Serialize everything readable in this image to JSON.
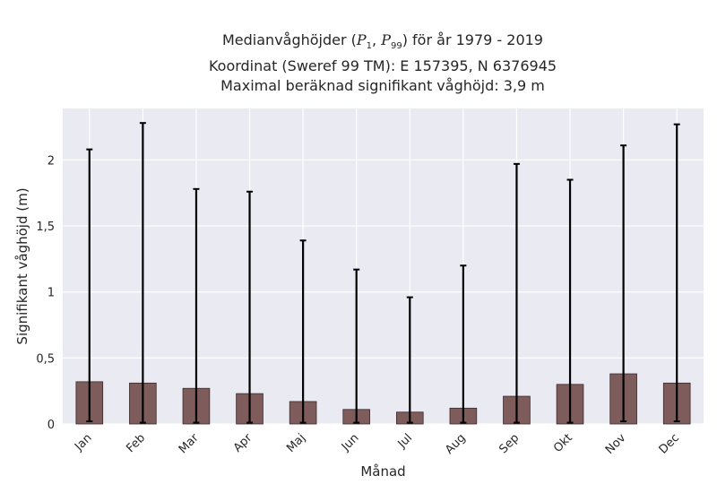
{
  "title": {
    "line1_pre": "Medianvåghöjder (",
    "p1_var": "P",
    "p1_sub": "1",
    "sep": ", ",
    "p99_var": "P",
    "p99_sub": "99",
    "line1_post": ") för år 1979 - 2019",
    "line2": "Koordinat (Sweref 99 TM): E 157395, N 6376945",
    "line3": "Maximal beräknad signifikant våghöjd: 3,9 m"
  },
  "colors": {
    "plot_bg": "#eaeaf2",
    "grid": "#ffffff",
    "bar_fill": "#7e5c5c",
    "bar_edge": "#3a2a2a",
    "error": "#000000"
  },
  "chart_data": {
    "type": "bar",
    "categories": [
      "Jan",
      "Feb",
      "Mar",
      "Apr",
      "Maj",
      "Jun",
      "Jul",
      "Aug",
      "Sep",
      "Okt",
      "Nov",
      "Dec"
    ],
    "values": [
      0.32,
      0.31,
      0.27,
      0.23,
      0.17,
      0.11,
      0.09,
      0.12,
      0.21,
      0.3,
      0.38,
      0.31
    ],
    "p1": [
      0.02,
      0.01,
      0.01,
      0.01,
      0.01,
      0.01,
      0.01,
      0.01,
      0.01,
      0.01,
      0.02,
      0.02
    ],
    "p99": [
      2.08,
      2.28,
      1.78,
      1.76,
      1.39,
      1.17,
      0.96,
      1.2,
      1.97,
      1.85,
      2.11,
      2.27
    ],
    "xlabel": "Månad",
    "ylabel": "Signifikant våghöjd (m)",
    "yticks": [
      0,
      0.5,
      1,
      1.5,
      2
    ],
    "ytick_labels": [
      "0",
      "0,5",
      "1",
      "1,5",
      "2"
    ],
    "ylim": [
      0,
      2.39
    ],
    "grid": true,
    "legend": "none"
  }
}
